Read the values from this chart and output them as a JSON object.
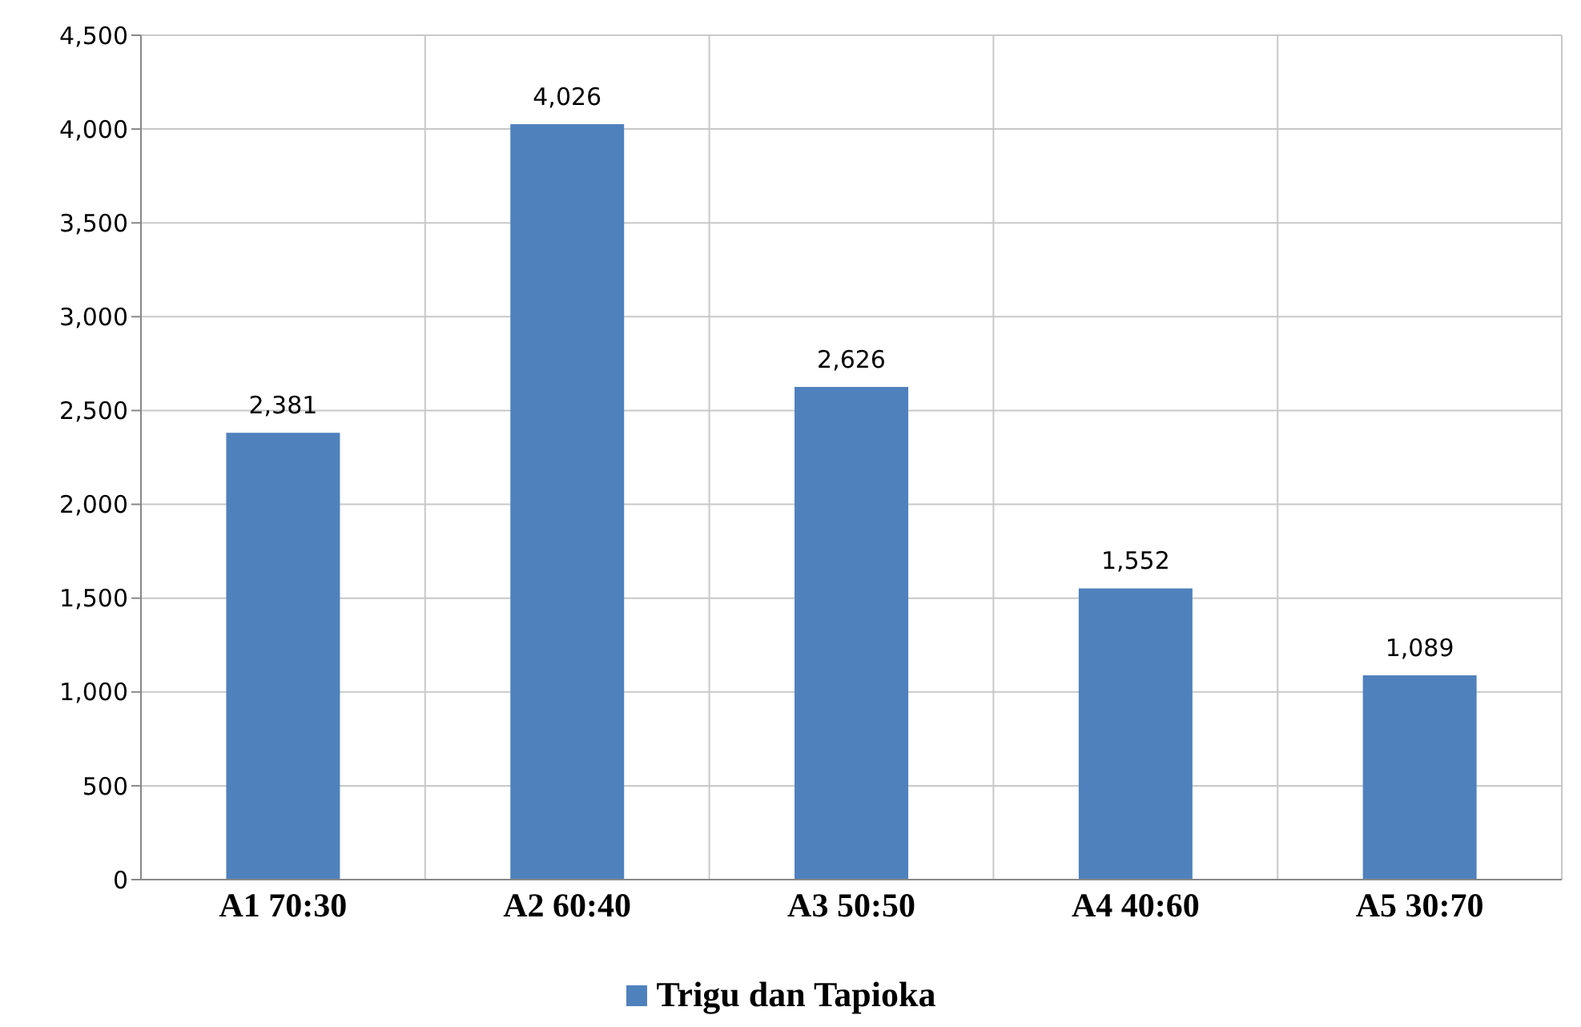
{
  "chart_data": {
    "type": "bar",
    "categories": [
      "A1 70:30",
      "A2 60:40",
      "A3 50:50",
      "A4 40:60",
      "A5 30:70"
    ],
    "series": [
      {
        "name": "Trigu dan Tapioka",
        "color": "#4f81bd",
        "values": [
          2381,
          4026,
          2626,
          1552,
          1089
        ],
        "value_labels": [
          "2,381",
          "4,026",
          "2,626",
          "1,552",
          "1,089"
        ]
      }
    ],
    "ylim": [
      0,
      4500
    ],
    "yticks": [
      0,
      500,
      {
        "value": 1000,
        "label": "1,000"
      },
      {
        "value": 1500,
        "label": "1,500"
      },
      {
        "value": 2000,
        "label": "2,000"
      },
      {
        "value": 2500,
        "label": "2,500"
      },
      {
        "value": 3000,
        "label": "3,000"
      },
      {
        "value": 3500,
        "label": "3,500"
      },
      {
        "value": 4000,
        "label": "4,000"
      },
      {
        "value": 4500,
        "label": "4,500"
      }
    ],
    "grid": true,
    "legend": "bottom"
  }
}
